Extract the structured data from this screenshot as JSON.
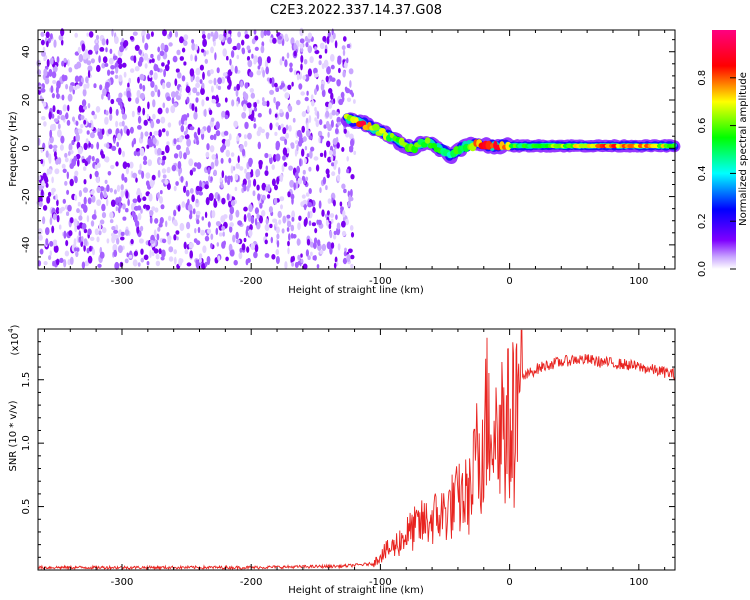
{
  "title": "C2E3.2022.337.14.37.G08",
  "chart_data": [
    {
      "type": "heatmap",
      "xlabel": "Height of straight line (km)",
      "ylabel": "Frequency (Hz)",
      "xlim": [
        -365,
        128
      ],
      "ylim": [
        -50,
        49
      ],
      "x_ticks": [
        -300,
        -200,
        -100,
        0,
        100
      ],
      "y_ticks": [
        -40,
        -20,
        0,
        20,
        40
      ],
      "colorbar": {
        "label": "Normalized spectral amplitude",
        "range": [
          0,
          1
        ],
        "ticks": [
          "0.0",
          "0.2",
          "0.4",
          "0.6",
          "0.8"
        ],
        "colors": [
          "#ffffff",
          "#7f00ff",
          "#0000ff",
          "#00ffff",
          "#00ff00",
          "#ffff00",
          "#ff0000",
          "#ff0080"
        ]
      },
      "noise_region": {
        "x_range": [
          -365,
          -122
        ],
        "y_range": [
          -50,
          49
        ],
        "level": "low"
      },
      "signal_trace": {
        "x": [
          -126,
          -115,
          -105,
          -95,
          -85,
          -75,
          -65,
          -55,
          -45,
          -35,
          -25,
          -15,
          -5,
          5,
          25,
          50,
          75,
          100,
          128
        ],
        "y": [
          12,
          11,
          8,
          6,
          2,
          0,
          3,
          0,
          -3,
          1,
          2,
          1,
          1,
          1,
          1,
          1,
          1,
          1,
          1
        ],
        "amplitude": [
          0.7,
          0.85,
          0.75,
          0.6,
          0.65,
          0.55,
          0.6,
          0.5,
          0.5,
          0.6,
          0.8,
          0.85,
          0.8,
          0.55,
          0.55,
          0.65,
          0.8,
          0.75,
          0.65
        ]
      }
    },
    {
      "type": "line",
      "xlabel": "Height of straight line (km)",
      "ylabel": "SNR (10 * v/v)",
      "y_multiplier": "(x10",
      "y_multiplier_exp": "4",
      "y_multiplier_close": ")",
      "xlim": [
        -365,
        128
      ],
      "ylim": [
        0,
        1.9
      ],
      "x_ticks": [
        -300,
        -200,
        -100,
        0,
        100
      ],
      "y_ticks": [
        "0.5",
        "1.0",
        "1.5"
      ],
      "series": [
        {
          "color": "#e8231f",
          "x": [
            -365,
            -300,
            -200,
            -130,
            -105,
            -100,
            -90,
            -80,
            -70,
            -60,
            -50,
            -40,
            -30,
            -25,
            -20,
            -15,
            -10,
            -5,
            0,
            5,
            10,
            15,
            20,
            30,
            40,
            50,
            60,
            70,
            80,
            90,
            100,
            110,
            120,
            128
          ],
          "y": [
            0.02,
            0.02,
            0.02,
            0.03,
            0.05,
            0.12,
            0.18,
            0.28,
            0.35,
            0.4,
            0.45,
            0.55,
            0.6,
            0.9,
            1.1,
            1.3,
            1.05,
            1.2,
            1.1,
            1.25,
            1.5,
            1.55,
            1.58,
            1.62,
            1.64,
            1.66,
            1.66,
            1.64,
            1.63,
            1.62,
            1.6,
            1.58,
            1.56,
            1.54
          ]
        }
      ]
    }
  ]
}
